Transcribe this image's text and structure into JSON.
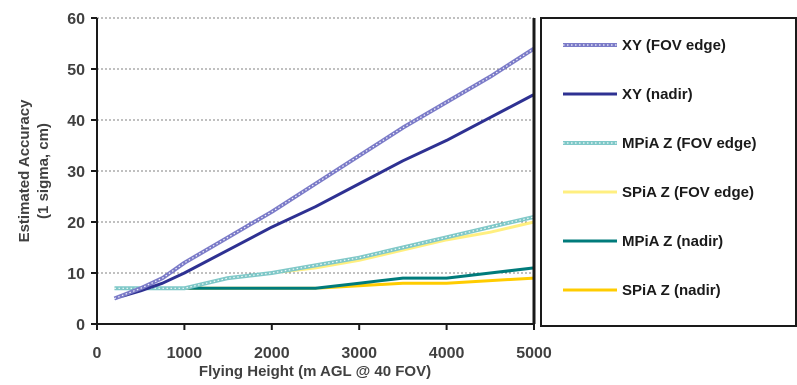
{
  "chart_data": {
    "type": "line",
    "xlabel": "Flying Height (m AGL @ 40 FOV)",
    "ylabel_lines": [
      "Estimated Accuracy",
      "(1 sigma, cm)"
    ],
    "xlim": [
      0,
      5000
    ],
    "ylim": [
      0,
      60
    ],
    "xticks": [
      0,
      1000,
      2000,
      3000,
      4000,
      5000
    ],
    "yticks": [
      0,
      10,
      20,
      30,
      40,
      50,
      60
    ],
    "grid": "horizontal dotted",
    "legend_position": "right",
    "series": [
      {
        "name": "XY (FOV edge)",
        "color": "#7b7bc8",
        "style": "hatched",
        "x": [
          200,
          500,
          750,
          1000,
          1500,
          2000,
          2500,
          3000,
          3500,
          4000,
          4500,
          5000
        ],
        "y": [
          5,
          7,
          9,
          12,
          17,
          22,
          27.5,
          33,
          38.5,
          43.5,
          48.5,
          54
        ]
      },
      {
        "name": "XY (nadir)",
        "color": "#2e3192",
        "style": "solid",
        "x": [
          200,
          500,
          750,
          1000,
          1500,
          2000,
          2500,
          3000,
          3500,
          4000,
          4500,
          5000
        ],
        "y": [
          5,
          6.5,
          8,
          10,
          14.5,
          19,
          23,
          27.5,
          32,
          36,
          40.5,
          45
        ]
      },
      {
        "name": "MPiA Z (FOV edge)",
        "color": "#7fc8c8",
        "style": "hatched",
        "x": [
          200,
          1000,
          1500,
          2000,
          2500,
          3000,
          3500,
          4000,
          4500,
          5000
        ],
        "y": [
          7,
          7,
          9,
          10,
          11.5,
          13,
          15,
          17,
          19,
          21
        ]
      },
      {
        "name": "SPiA Z (FOV edge)",
        "color": "#ffef80",
        "style": "solid",
        "x": [
          200,
          1000,
          1500,
          2000,
          2500,
          3000,
          3500,
          4000,
          4500,
          5000
        ],
        "y": [
          7,
          7,
          9,
          10,
          11,
          12.5,
          14.5,
          16.5,
          18,
          20
        ]
      },
      {
        "name": "MPiA Z (nadir)",
        "color": "#007b7b",
        "style": "solid",
        "x": [
          200,
          2500,
          3000,
          3500,
          4000,
          4500,
          5000
        ],
        "y": [
          7,
          7,
          8,
          9,
          9,
          10,
          11
        ]
      },
      {
        "name": "SPiA Z (nadir)",
        "color": "#ffcc00",
        "style": "solid",
        "x": [
          200,
          2500,
          3000,
          3500,
          4000,
          4500,
          5000
        ],
        "y": [
          7,
          7,
          7.5,
          8,
          8,
          8.5,
          9
        ]
      }
    ]
  }
}
